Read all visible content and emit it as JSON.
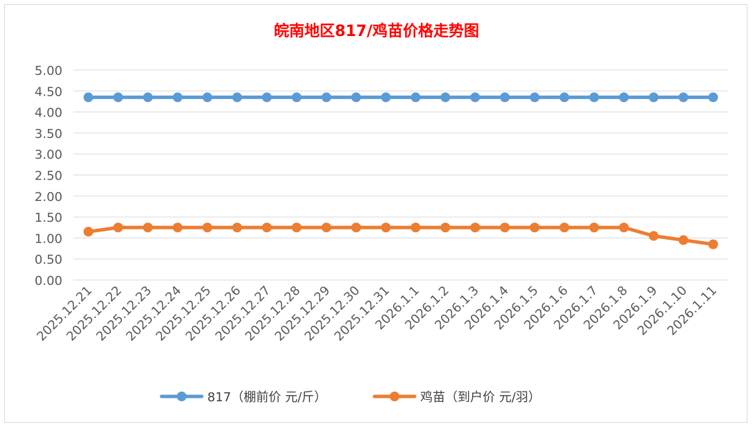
{
  "chart_data": {
    "type": "line",
    "title": "皖南地区817/鸡苗价格走势图",
    "title_color": "#ff0000",
    "xlabel": "",
    "ylabel": "",
    "categories": [
      "2025.12.21",
      "2025.12.22",
      "2025.12.23",
      "2025.12.24",
      "2025.12.25",
      "2025.12.26",
      "2025.12.27",
      "2025.12.28",
      "2025.12.29",
      "2025.12.30",
      "2025.12.31",
      "2026.1.1",
      "2026.1.2",
      "2026.1.3",
      "2026.1.4",
      "2026.1.5",
      "2026.1.6",
      "2026.1.7",
      "2026.1.8",
      "2026.1.9",
      "2026.1.10",
      "2026.1.11"
    ],
    "ylim": [
      0,
      5
    ],
    "yticks": [
      "0.00",
      "0.50",
      "1.00",
      "1.50",
      "2.00",
      "2.50",
      "3.00",
      "3.50",
      "4.00",
      "4.50",
      "5.00"
    ],
    "grid": true,
    "legend_position": "bottom",
    "series": [
      {
        "name": "817（棚前价 元/斤）",
        "color": "#5b9bd5",
        "values": [
          4.35,
          4.35,
          4.35,
          4.35,
          4.35,
          4.35,
          4.35,
          4.35,
          4.35,
          4.35,
          4.35,
          4.35,
          4.35,
          4.35,
          4.35,
          4.35,
          4.35,
          4.35,
          4.35,
          4.35,
          4.35,
          4.35
        ]
      },
      {
        "name": "鸡苗（到户价 元/羽）",
        "color": "#ed7d31",
        "values": [
          1.15,
          1.25,
          1.25,
          1.25,
          1.25,
          1.25,
          1.25,
          1.25,
          1.25,
          1.25,
          1.25,
          1.25,
          1.25,
          1.25,
          1.25,
          1.25,
          1.25,
          1.25,
          1.25,
          1.05,
          0.95,
          0.85
        ]
      }
    ]
  }
}
